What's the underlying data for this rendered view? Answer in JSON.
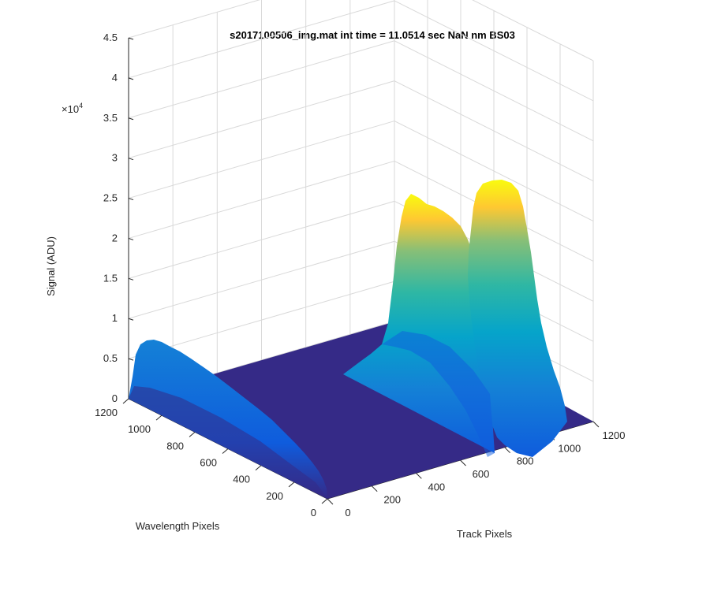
{
  "chart_data": {
    "type": "surface",
    "title": "s2017100506_img.mat int time = 11.0514 sec  NaN nm BS03",
    "xlabel": "Track Pixels",
    "ylabel": "Wavelength Pixels",
    "zlabel": "Signal (ADU)",
    "z_multiplier": "×10",
    "z_multiplier_exp": "4",
    "xlim": [
      0,
      1200
    ],
    "ylim": [
      0,
      1200
    ],
    "zlim": [
      0,
      45000
    ],
    "x_ticks": [
      "0",
      "200",
      "400",
      "600",
      "800",
      "1000",
      "1200"
    ],
    "y_ticks": [
      "0",
      "200",
      "400",
      "600",
      "800",
      "1000",
      "1200"
    ],
    "z_ticks": [
      "0",
      "0.5",
      "1",
      "1.5",
      "2",
      "2.5",
      "3",
      "3.5",
      "4",
      "4.5"
    ],
    "grid": true,
    "colormap": [
      "#352a87",
      "#0f5cdd",
      "#1481d6",
      "#06a4ca",
      "#2eb7a4",
      "#87bf77",
      "#d1bb59",
      "#fec832",
      "#f9fb0e"
    ],
    "features": [
      {
        "label": "",
        "track_range": [
          0,
          150
        ],
        "wavelength_range": [
          0,
          1100
        ],
        "peak_signal": 10000
      },
      {
        "label": "",
        "track_range": [
          900,
          1000
        ],
        "wavelength_range": [
          0,
          1000
        ],
        "peak_signal": 38000
      },
      {
        "label": "",
        "track_range": [
          1030,
          1150
        ],
        "wavelength_range": [
          0,
          1000
        ],
        "peak_signal": 39000
      }
    ]
  }
}
